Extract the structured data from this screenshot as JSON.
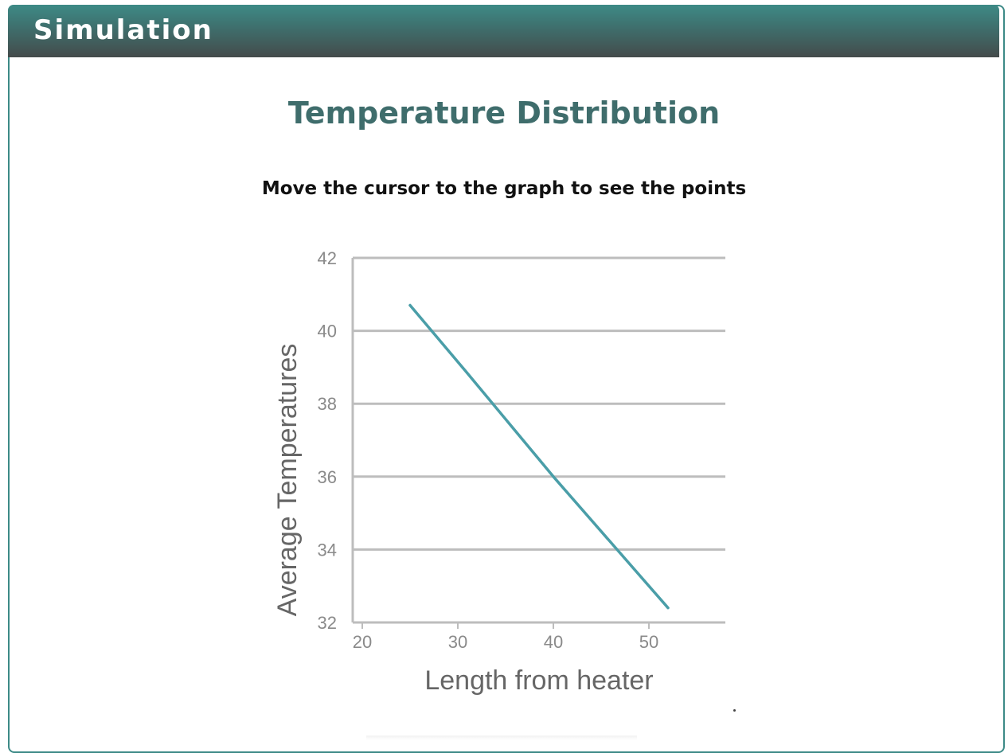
{
  "header": {
    "title": "Simulation"
  },
  "simulation": {
    "title": "Temperature Distribution",
    "instruction": "Move the cursor to the graph to see the points"
  },
  "colors": {
    "header_top": "#3d8a86",
    "header_bottom": "#444b4b",
    "title": "#3f6d6c",
    "series_line": "#4a9ea8",
    "grid": "#bdbdbd"
  },
  "chart_data": {
    "type": "line",
    "title": "",
    "xlabel": "Length from heater",
    "ylabel": "Average Temperatures",
    "xlim": [
      19,
      58
    ],
    "ylim": [
      32,
      42
    ],
    "xticks": [
      20,
      30,
      40,
      50
    ],
    "yticks": [
      32,
      34,
      36,
      38,
      40,
      42
    ],
    "grid": "horizontal",
    "legend": "none",
    "series": [
      {
        "x": [
          25,
          30.8,
          40,
          52
        ],
        "y": [
          40.7,
          38.9,
          36,
          32.4
        ]
      }
    ]
  }
}
